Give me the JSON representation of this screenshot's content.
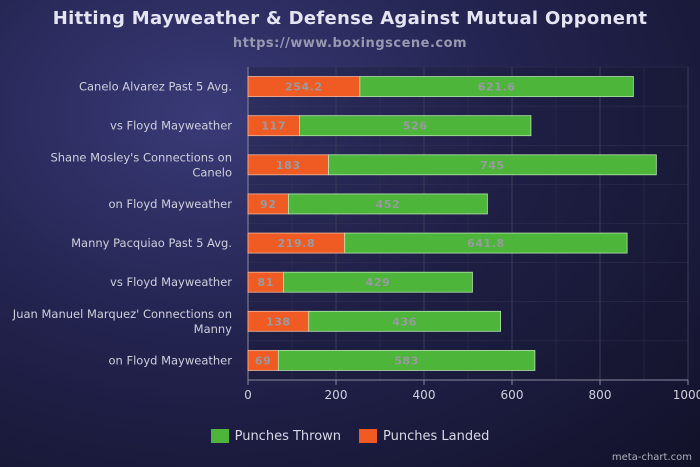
{
  "header": {
    "title": "Hitting Mayweather & Defense Against Mutual Opponent",
    "subtitle": "https://www.boxingscene.com"
  },
  "colors": {
    "thrown": "#4cb53a",
    "landed": "#ef5b22",
    "grid": "#3c3c5a",
    "axis": "#8a8aa0",
    "text": "#cfcfdc",
    "bar_label": "#9a9aa0"
  },
  "chart_data": {
    "type": "bar",
    "orientation": "horizontal",
    "stacked": true,
    "categories": [
      [
        "Canelo Alvarez Past 5 Avg."
      ],
      [
        "vs Floyd Mayweather"
      ],
      [
        "Shane Mosley's Connections on",
        "Canelo"
      ],
      [
        "on Floyd Mayweather"
      ],
      [
        "Manny Pacquiao Past 5 Avg."
      ],
      [
        "vs Floyd Mayweather"
      ],
      [
        "Juan Manuel Marquez' Connections on",
        "Manny"
      ],
      [
        "on Floyd Mayweather"
      ]
    ],
    "series": [
      {
        "name": "Punches Landed",
        "values": [
          254.2,
          117,
          183,
          92,
          219.8,
          81,
          138,
          69
        ]
      },
      {
        "name": "Punches Thrown",
        "values": [
          621.6,
          526,
          745,
          452,
          641.8,
          429,
          436,
          583
        ]
      }
    ],
    "xlim": [
      0,
      1000
    ],
    "xticks": [
      0,
      200,
      400,
      600,
      800,
      1000
    ],
    "grid": true,
    "legend_position": "bottom"
  },
  "legend": [
    {
      "label": "Punches Thrown",
      "color": "#4cb53a"
    },
    {
      "label": "Punches Landed",
      "color": "#ef5b22"
    }
  ],
  "footer": {
    "credit": "meta-chart.com"
  }
}
